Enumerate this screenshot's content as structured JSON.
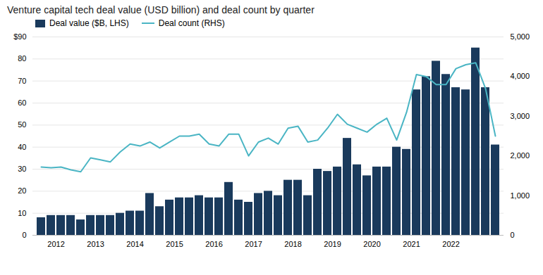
{
  "chart_data": {
    "type": "bar",
    "title": "Venture capital tech deal value (USD billion) and deal count by quarter",
    "categories": [
      null,
      "2012",
      null,
      null,
      null,
      "2013",
      null,
      null,
      null,
      "2014",
      null,
      null,
      null,
      "2015",
      null,
      null,
      null,
      "2016",
      null,
      null,
      null,
      "2017",
      null,
      null,
      null,
      "2018",
      null,
      null,
      null,
      "2019",
      null,
      null,
      null,
      "2020",
      null,
      null,
      null,
      "2021",
      null,
      null,
      null,
      "2022",
      null,
      null,
      null,
      null,
      null
    ],
    "series": [
      {
        "name": "Deal value ($B, LHS)",
        "type": "bar",
        "color": "#1a3a5c",
        "values": [
          8,
          9,
          9,
          9,
          7,
          9,
          9,
          9,
          10,
          11,
          11,
          19,
          13,
          16,
          17,
          17,
          18,
          17,
          17,
          24,
          16,
          15,
          19,
          20,
          18,
          25,
          25,
          18,
          30,
          29,
          31,
          44,
          32,
          27,
          31,
          31,
          40,
          39,
          66,
          72,
          79,
          73,
          67,
          66,
          85,
          67,
          41
        ]
      },
      {
        "name": "Deal count (RHS)",
        "type": "line",
        "color": "#4ab5c4",
        "axis": "y2",
        "values": [
          1720,
          1700,
          1720,
          1650,
          1600,
          1950,
          1900,
          1850,
          2100,
          2300,
          2250,
          2350,
          2200,
          2350,
          2500,
          2500,
          2550,
          2300,
          2250,
          2550,
          2550,
          2000,
          2350,
          2450,
          2300,
          2700,
          2750,
          2350,
          2400,
          2700,
          3050,
          2800,
          2700,
          2600,
          2800,
          2950,
          2400,
          3100,
          4050,
          4000,
          3800,
          3800,
          4200,
          4300,
          4350,
          3700,
          2500
        ]
      }
    ],
    "ylim": [
      0,
      90
    ],
    "yticks": [
      0,
      10,
      20,
      30,
      40,
      50,
      60,
      70,
      80,
      {
        "value": 90,
        "label": "$90"
      }
    ],
    "y2lim": [
      0,
      5000
    ],
    "y2ticks": [
      0,
      {
        "value": 1000,
        "label": "1,000"
      },
      {
        "value": 2000,
        "label": "2,000"
      },
      {
        "value": 3000,
        "label": "3,000"
      },
      {
        "value": 4000,
        "label": "4,000"
      },
      {
        "value": 5000,
        "label": "5,000"
      }
    ],
    "grid": true,
    "legend": "upper left"
  }
}
